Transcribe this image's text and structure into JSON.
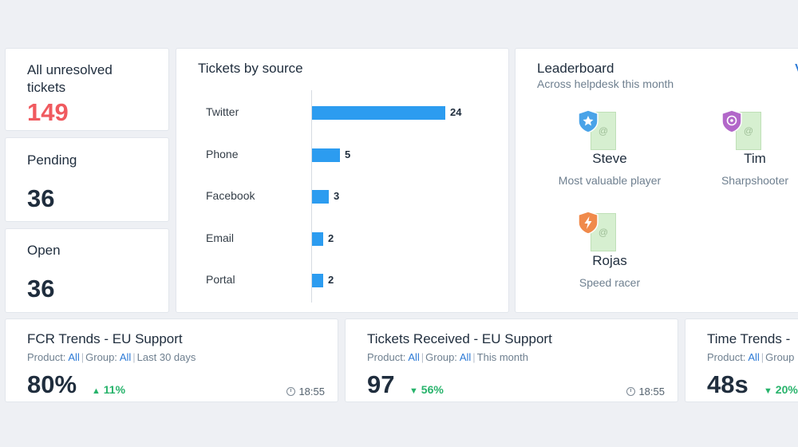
{
  "stats": {
    "unresolved": {
      "label": "All unresolved tickets",
      "value": "149"
    },
    "pending": {
      "label": "Pending",
      "value": "36"
    },
    "open": {
      "label": "Open",
      "value": "36"
    }
  },
  "tickets_by_source": {
    "title": "Tickets by source"
  },
  "chart_data": {
    "type": "bar",
    "orientation": "horizontal",
    "title": "Tickets by source",
    "categories": [
      "Twitter",
      "Phone",
      "Facebook",
      "Email",
      "Portal"
    ],
    "values": [
      24,
      5,
      3,
      2,
      2
    ],
    "bar_color": "#2c9cf0"
  },
  "leaderboard": {
    "title": "Leaderboard",
    "subtitle": "Across helpdesk this month",
    "link": "Vi",
    "entries": [
      {
        "name": "Steve",
        "role": "Most valuable player",
        "badge_color": "#4aa3e8",
        "badge_icon": "star-icon"
      },
      {
        "name": "Tim",
        "role": "Sharpshooter",
        "badge_color": "#b267c9",
        "badge_icon": "target-icon"
      },
      {
        "name": "Rojas",
        "role": "Speed racer",
        "badge_color": "#f08a4b",
        "badge_icon": "lightning-icon"
      }
    ],
    "avatar_glyph": "@"
  },
  "trends": [
    {
      "title": "FCR Trends - EU Support",
      "product_label": "Product:",
      "product_value": "All",
      "group_label": "Group:",
      "group_value": "All",
      "period": "Last 30 days",
      "value": "80%",
      "delta": "11%",
      "delta_dir": "up",
      "time": "18:55"
    },
    {
      "title": "Tickets Received - EU Support",
      "product_label": "Product:",
      "product_value": "All",
      "group_label": "Group:",
      "group_value": "All",
      "period": "This month",
      "value": "97",
      "delta": "56%",
      "delta_dir": "down",
      "time": "18:55"
    },
    {
      "title": "Time Trends -",
      "product_label": "Product:",
      "product_value": "All",
      "group_label": "Group",
      "value": "48s",
      "delta": "20%",
      "delta_dir": "down"
    }
  ],
  "colors": {
    "accent_red": "#f05a5f",
    "link_blue": "#2c7ad6",
    "positive_green": "#27b36b"
  }
}
